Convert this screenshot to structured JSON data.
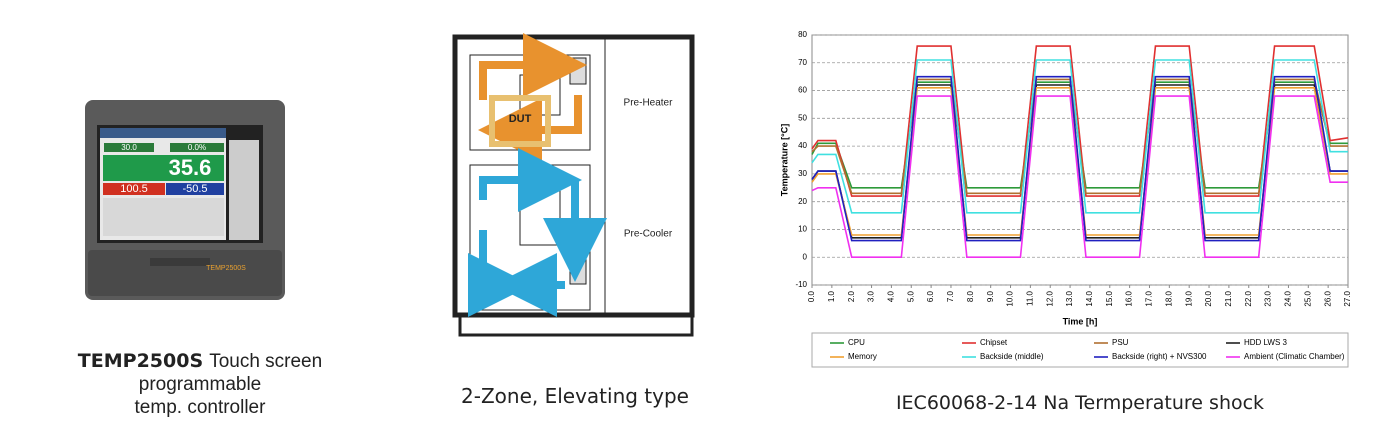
{
  "product": {
    "name": "TEMP2500S",
    "description_line1": "Touch screen programmable",
    "description_line2": "temp. controller",
    "screen": {
      "setpoint": "30.0",
      "output": "0.0%",
      "present": "35.6",
      "upper": "100.5",
      "lower": "-50.5"
    },
    "logo": "TEMP2500S"
  },
  "diagram": {
    "dut": "DUT",
    "pre_heater": "Pre-Heater",
    "pre_cooler": "Pre-Cooler",
    "caption": "2-Zone, Elevating type"
  },
  "chart_data": {
    "type": "line",
    "caption": "IEC60068-2-14 Na Termperature shock",
    "x_label": "Time [h]",
    "y_label": "Temperature [°C]",
    "x": [
      0,
      0.3,
      1.2,
      2.0,
      4.5,
      5.3,
      7.0,
      7.8,
      10.5,
      11.3,
      13.0,
      13.8,
      16.5,
      17.3,
      19.0,
      19.8,
      22.5,
      23.3,
      25.3,
      26.1,
      27.0
    ],
    "series": [
      {
        "name": "CPU",
        "color": "#2e9a3a",
        "values": [
          37,
          41,
          41,
          25,
          25,
          63,
          63,
          25,
          25,
          63,
          63,
          25,
          25,
          63,
          63,
          25,
          25,
          63,
          63,
          41,
          41
        ]
      },
      {
        "name": "Chipset",
        "color": "#e03030",
        "values": [
          39,
          42,
          42,
          22,
          22,
          76,
          76,
          22,
          22,
          76,
          76,
          22,
          22,
          76,
          76,
          22,
          22,
          76,
          76,
          42,
          43
        ]
      },
      {
        "name": "PSU",
        "color": "#b07030",
        "values": [
          38,
          40,
          40,
          23,
          23,
          64,
          64,
          23,
          23,
          64,
          64,
          23,
          23,
          64,
          64,
          23,
          23,
          64,
          64,
          40,
          40
        ]
      },
      {
        "name": "HDD LWS 3",
        "color": "#202020",
        "values": [
          28,
          31,
          31,
          7,
          7,
          62,
          62,
          7,
          7,
          62,
          62,
          7,
          7,
          62,
          62,
          7,
          7,
          62,
          62,
          31,
          31
        ]
      },
      {
        "name": "Memory",
        "color": "#f0a030",
        "values": [
          27,
          30,
          30,
          8,
          8,
          61,
          61,
          8,
          8,
          61,
          61,
          8,
          8,
          61,
          61,
          8,
          8,
          61,
          61,
          30,
          30
        ]
      },
      {
        "name": "Backside (middle)",
        "color": "#40e0e0",
        "values": [
          34,
          37,
          37,
          16,
          16,
          71,
          71,
          16,
          16,
          71,
          71,
          16,
          16,
          71,
          71,
          16,
          16,
          71,
          71,
          38,
          38
        ]
      },
      {
        "name": "Backside (right) + NVS300",
        "color": "#2020c0",
        "values": [
          28,
          31,
          31,
          6,
          6,
          65,
          65,
          6,
          6,
          65,
          65,
          6,
          6,
          65,
          65,
          6,
          6,
          65,
          65,
          31,
          31
        ]
      },
      {
        "name": "Ambient (Climatic Chamber)",
        "color": "#f030f0",
        "values": [
          24,
          25,
          25,
          0,
          0,
          58,
          58,
          0,
          0,
          58,
          58,
          0,
          0,
          58,
          58,
          0,
          0,
          58,
          58,
          27,
          27
        ]
      }
    ],
    "xlim": [
      0,
      27.0
    ],
    "xticks": [
      {
        "value": 0,
        "label": "0.0"
      },
      {
        "value": 1,
        "label": "1.0"
      },
      {
        "value": 2,
        "label": "2.0"
      },
      {
        "value": 3,
        "label": "3.0"
      },
      {
        "value": 4,
        "label": "4.0"
      },
      {
        "value": 5,
        "label": "5.0"
      },
      {
        "value": 6,
        "label": "6.0"
      },
      {
        "value": 7,
        "label": "7.0"
      },
      {
        "value": 8,
        "label": "8.0"
      },
      {
        "value": 9,
        "label": "9.0"
      },
      {
        "value": 10,
        "label": "10.0"
      },
      {
        "value": 11,
        "label": "11.0"
      },
      {
        "value": 12,
        "label": "12.0"
      },
      {
        "value": 13,
        "label": "13.0"
      },
      {
        "value": 14,
        "label": "14.0"
      },
      {
        "value": 15,
        "label": "15.0"
      },
      {
        "value": 16,
        "label": "16.0"
      },
      {
        "value": 17,
        "label": "17.0"
      },
      {
        "value": 18,
        "label": "18.0"
      },
      {
        "value": 19,
        "label": "19.0"
      },
      {
        "value": 20,
        "label": "20.0"
      },
      {
        "value": 21,
        "label": "21.0"
      },
      {
        "value": 22,
        "label": "22.0"
      },
      {
        "value": 23,
        "label": "23.0"
      },
      {
        "value": 24,
        "label": "24.0"
      },
      {
        "value": 25,
        "label": "25.0"
      },
      {
        "value": 26,
        "label": "26.0"
      },
      {
        "value": 27,
        "label": "27.0"
      }
    ],
    "ylim": [
      -10,
      80
    ],
    "yticks": [
      -10,
      0,
      10,
      20,
      30,
      40,
      50,
      60,
      70,
      80
    ],
    "grid": true
  }
}
